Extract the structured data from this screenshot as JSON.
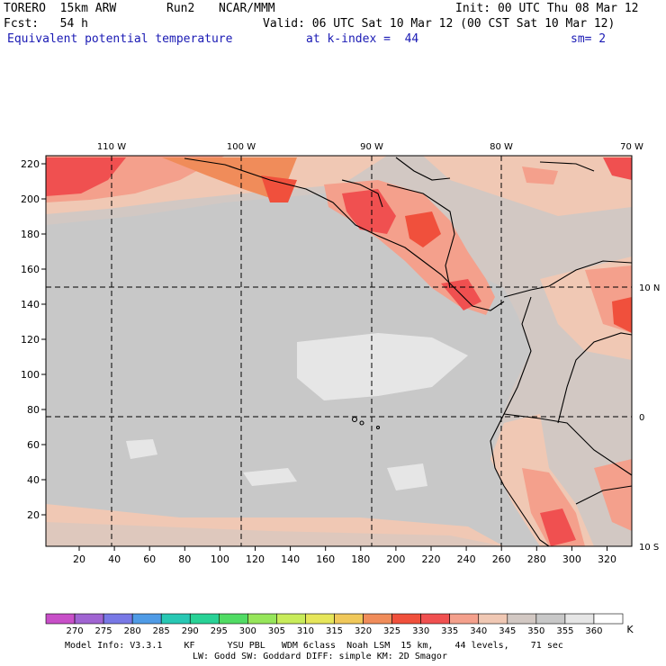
{
  "header": {
    "model": "TORERO  15km ARW",
    "run": "Run2",
    "org": "NCAR/MMM",
    "init": "Init: 00 UTC Thu 08 Mar 12",
    "fcst": "Fcst:   54 h",
    "valid": "Valid: 06 UTC Sat 10 Mar 12 (00 CST Sat 10 Mar 12)",
    "field": "Equivalent potential temperature",
    "level": "at k-index =  44",
    "smooth": "sm= 2"
  },
  "map": {
    "top_lon_labels": [
      "110 W",
      "100 W",
      "90 W",
      "80 W",
      "70 W"
    ],
    "right_lat_labels": [
      "10 N",
      "0",
      "10 S"
    ],
    "y_ticks": [
      "220",
      "200",
      "180",
      "160",
      "140",
      "120",
      "100",
      "80",
      "60",
      "40",
      "20"
    ],
    "x_ticks": [
      "20",
      "40",
      "60",
      "80",
      "100",
      "120",
      "140",
      "160",
      "180",
      "200",
      "220",
      "240",
      "260",
      "280",
      "300",
      "320"
    ]
  },
  "colorbar": {
    "labels": [
      "270",
      "275",
      "280",
      "285",
      "290",
      "295",
      "300",
      "305",
      "310",
      "315",
      "320",
      "325",
      "330",
      "335",
      "340",
      "345",
      "350",
      "355",
      "360"
    ],
    "unit": "K",
    "colors": [
      "#c84fc8",
      "#a064d2",
      "#7878e6",
      "#4f9be6",
      "#28c8b4",
      "#28d296",
      "#50dc64",
      "#96e65a",
      "#c8ec5a",
      "#e6e65a",
      "#f0c85a",
      "#f08c5a",
      "#f0503c",
      "#f05050",
      "#f4a08c",
      "#f0c8b4",
      "#d2c8c3",
      "#c8c8c8",
      "#e6e6e6",
      "#ffffff"
    ]
  },
  "footer": {
    "line1": "Model Info: V3.3.1    KF      YSU PBL   WDM 6class  Noah LSM  15 km,    44 levels,    71 sec",
    "line2": "LW: Godd SW: Goddard DIFF: simple KM: 2D Smagor"
  }
}
